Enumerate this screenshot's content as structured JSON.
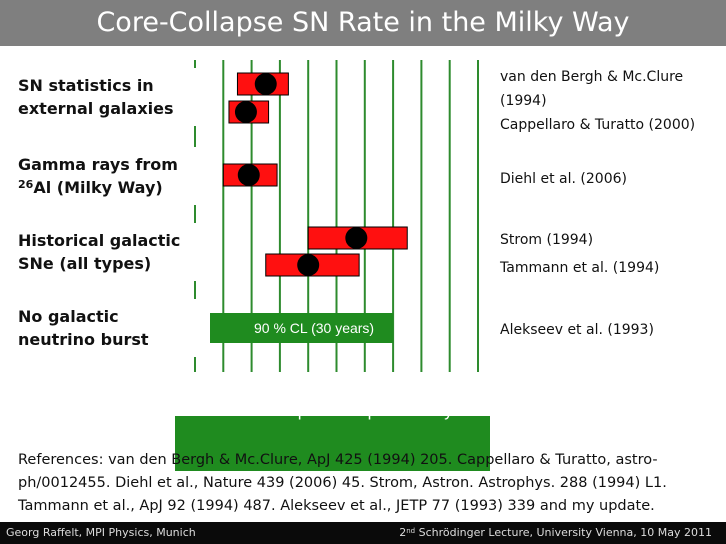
{
  "title": "Core-Collapse SN Rate in the Milky Way",
  "chart_data": {
    "type": "interval",
    "xlabel": "Core-collapse SNe per century",
    "xlim": [
      0,
      10
    ],
    "ticks": [
      "0",
      "1",
      "2",
      "3",
      "4",
      "5",
      "6",
      "7",
      "8",
      "9",
      "10"
    ],
    "categories": [
      {
        "label": "SN statistics in external galaxies",
        "label_lines": "SN statistics in\nexternal galaxies"
      },
      {
        "label_prefix": "Gamma rays from",
        "isotope_mass": "26",
        "label_suffix": "Al (Milky Way)"
      },
      {
        "label": "Historical galactic SNe (all types)",
        "label_lines": "Historical galactic\nSNe (all types)"
      },
      {
        "label": "No galactic neutrino burst",
        "label_lines": "No galactic\nneutrino burst"
      }
    ],
    "measurements": [
      {
        "reference": "van den Bergh & Mc.Clure (1994)",
        "value": 2.5,
        "low": 1.5,
        "high": 3.3
      },
      {
        "reference": "Cappellaro & Turatto (2000)",
        "value": 1.8,
        "low": 1.2,
        "high": 2.6
      },
      {
        "reference": "Diehl et al. (2006)",
        "value": 1.9,
        "low": 1.0,
        "high": 2.9
      },
      {
        "reference": "Strom (1994)",
        "value": 5.7,
        "low": 4.0,
        "high": 7.5
      },
      {
        "reference": "Tammann et al. (1994)",
        "value": 4.0,
        "low": 2.5,
        "high": 5.8
      }
    ],
    "limit": {
      "reference": "Alekseev et al. (1993)",
      "upper": 7.0,
      "label": "90 % CL (30 years)"
    },
    "references_display": [
      [
        "van den Bergh & Mc.Clure",
        "(1994)",
        "Cappellaro & Turatto (2000)"
      ],
      [
        "Diehl et al. (2006)"
      ],
      [
        "Strom (1994)",
        "Tammann et al. (1994)"
      ],
      [
        "Alekseev et al. (1993)"
      ]
    ],
    "colors": {
      "grid": "#2e8b2e",
      "grid_band": "#1f8b1f",
      "bar": "#ff1010",
      "marker": "#000000",
      "title_bg": "#7f7f7f"
    }
  },
  "references_text": "References:   van den Bergh & Mc.Clure, ApJ 425 (1994) 205. Cappellaro & Turatto, astro-ph/0012455. Diehl et al., Nature 439 (2006) 45. Strom, Astron. Astrophys. 288 (1994) L1. Tammann et al., ApJ 92 (1994) 487. Alekseev et al., JETP 77 (1993) 339 and my update.",
  "footer": {
    "left": "Georg Raffelt, MPI Physics, Munich",
    "right_num": "2",
    "right_sup": "nd",
    "right_rest": " Schrödinger Lecture, University Vienna, 10 May 2011"
  }
}
